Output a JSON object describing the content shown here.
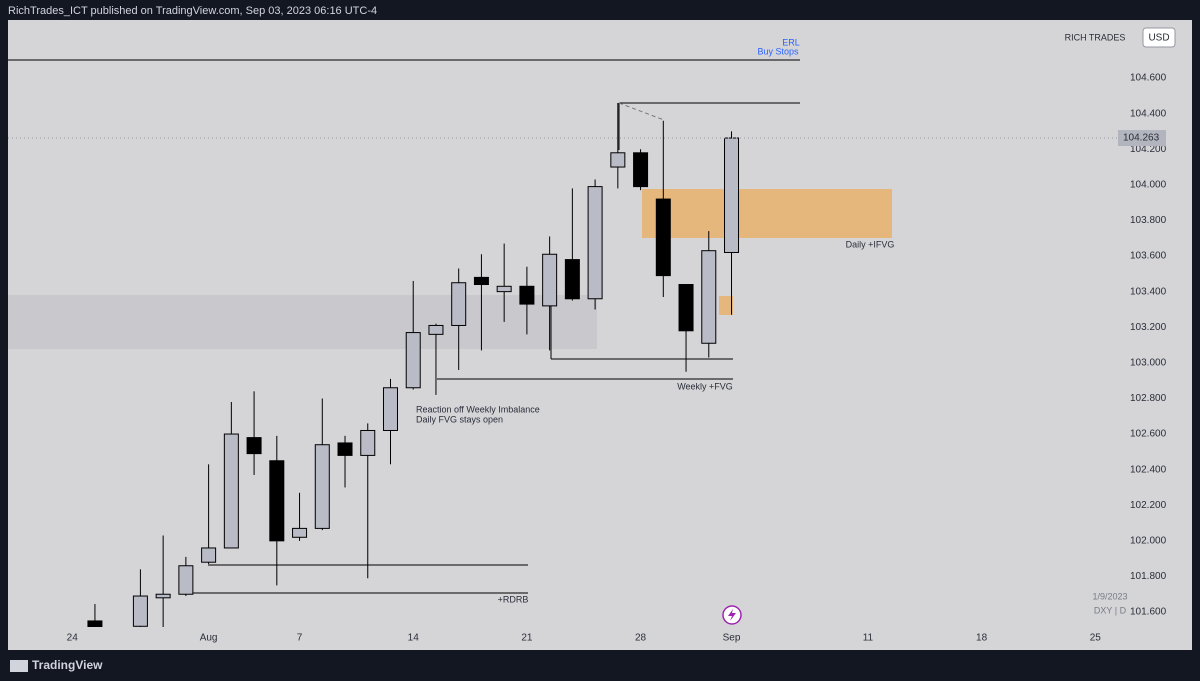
{
  "chart_data": {
    "type": "candlestick",
    "title": "RichTrades_ICT published on TradingView.com, Sep 03, 2023 06:16 UTC-4",
    "brand": "RICH TRADES",
    "currency": "USD",
    "footer": "TradingView",
    "date_label": "1/9/2023",
    "symbol_label": "DXY | D",
    "annotations": [
      "ERL",
      "Buy Stops",
      "Daily +IFVG",
      "Reaction off Weekly Imbalance",
      "Daily FVG stays open",
      "Weekly +FVG",
      "+RDRB"
    ],
    "x": [
      "2023-07-25",
      "2023-07-27",
      "2023-07-28",
      "2023-07-31",
      "2023-08-01",
      "2023-08-02",
      "2023-08-03",
      "2023-08-04",
      "2023-08-07",
      "2023-08-08",
      "2023-08-09",
      "2023-08-10",
      "2023-08-11",
      "2023-08-14",
      "2023-08-15",
      "2023-08-16",
      "2023-08-17",
      "2023-08-18",
      "2023-08-21",
      "2023-08-22",
      "2023-08-23",
      "2023-08-24",
      "2023-08-25",
      "2023-08-28",
      "2023-08-29",
      "2023-08-30",
      "2023-08-31",
      "2023-09-01"
    ],
    "open": [
      101.55,
      101.52,
      101.68,
      101.7,
      101.88,
      101.96,
      102.58,
      102.45,
      102.02,
      102.07,
      102.55,
      102.48,
      102.62,
      102.86,
      103.16,
      103.21,
      103.48,
      103.4,
      103.43,
      103.32,
      103.58,
      103.36,
      104.1,
      104.18,
      103.92,
      103.44,
      103.11,
      103.62
    ],
    "high": [
      101.645,
      101.84,
      102.03,
      101.91,
      102.43,
      102.78,
      102.84,
      102.59,
      102.27,
      102.8,
      102.59,
      102.66,
      102.91,
      103.46,
      103.22,
      103.53,
      103.61,
      103.67,
      103.54,
      103.71,
      103.98,
      104.03,
      104.46,
      104.2,
      104.36,
      103.44,
      103.74,
      104.3
    ],
    "low": [
      101.45,
      101.45,
      101.5,
      101.69,
      101.87,
      101.96,
      102.37,
      101.75,
      102.0,
      102.06,
      102.3,
      101.79,
      102.43,
      102.85,
      102.82,
      102.96,
      103.07,
      103.23,
      103.16,
      103.07,
      103.35,
      103.3,
      103.98,
      103.97,
      103.37,
      102.95,
      103.03,
      103.27
    ],
    "close": [
      101.5,
      101.69,
      101.7,
      101.86,
      101.96,
      102.6,
      102.49,
      102.0,
      102.07,
      102.54,
      102.48,
      102.62,
      102.86,
      103.17,
      103.21,
      103.45,
      103.44,
      103.43,
      103.33,
      103.61,
      103.36,
      103.99,
      104.18,
      103.99,
      103.49,
      103.18,
      103.63,
      104.263
    ],
    "last_price": 104.263,
    "up_color": "#b9bbc7",
    "down_color": "#000000",
    "ylim": [
      101.516,
      104.926
    ],
    "yticks": [
      {
        "value": 101.6,
        "label": "101.600"
      },
      {
        "value": 101.8,
        "label": "101.800"
      },
      {
        "value": 102,
        "label": "102.000"
      },
      {
        "value": 102.2,
        "label": "102.200"
      },
      {
        "value": 102.4,
        "label": "102.400"
      },
      {
        "value": 102.6,
        "label": "102.600"
      },
      {
        "value": 102.8,
        "label": "102.800"
      },
      {
        "value": 103,
        "label": "103.000"
      },
      {
        "value": 103.2,
        "label": "103.200"
      },
      {
        "value": 103.4,
        "label": "103.400"
      },
      {
        "value": 103.6,
        "label": "103.600"
      },
      {
        "value": 103.8,
        "label": "103.800"
      },
      {
        "value": 104,
        "label": "104.000"
      },
      {
        "value": 104.2,
        "label": "104.200"
      },
      {
        "value": 104.4,
        "label": "104.400"
      },
      {
        "value": 104.6,
        "label": "104.600"
      }
    ],
    "xlim": [
      "2023-07-19",
      "2023-09-26"
    ],
    "xticks": [
      {
        "value": "2023-07-24",
        "label": "24"
      },
      {
        "value": "2023-08-01",
        "label": "Aug"
      },
      {
        "value": "2023-08-07",
        "label": "7"
      },
      {
        "value": "2023-08-14",
        "label": "14"
      },
      {
        "value": "2023-08-21",
        "label": "21"
      },
      {
        "value": "2023-08-28",
        "label": "28"
      },
      {
        "value": "2023-09-01",
        "label": "Sep"
      },
      {
        "value": "2023-09-11",
        "label": "11"
      },
      {
        "value": "2023-09-18",
        "label": "18"
      },
      {
        "value": "2023-09-25",
        "label": "25"
      }
    ],
    "grid": false
  }
}
